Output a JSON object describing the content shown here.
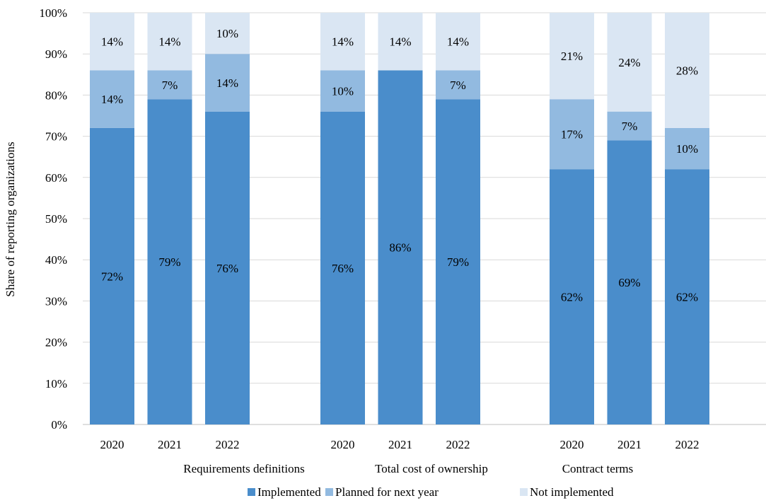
{
  "chart_data": {
    "type": "bar",
    "stacked": true,
    "ylabel": "Share of reporting organizations",
    "ylim": [
      0,
      100
    ],
    "y_ticks": [
      "0%",
      "10%",
      "20%",
      "30%",
      "40%",
      "50%",
      "60%",
      "70%",
      "80%",
      "90%",
      "100%"
    ],
    "y_tick_values": [
      0,
      10,
      20,
      30,
      40,
      50,
      60,
      70,
      80,
      90,
      100
    ],
    "grid": "horizontal",
    "legend_position": "bottom",
    "groups": [
      {
        "name": "Requirements definitions",
        "categories": [
          "2020",
          "2021",
          "2022"
        ],
        "series": [
          {
            "name": "Implemented",
            "values": [
              72,
              79,
              76
            ],
            "labels": [
              "72%",
              "79%",
              "76%"
            ]
          },
          {
            "name": "Planned for next year",
            "values": [
              14,
              7,
              14
            ],
            "labels": [
              "14%",
              "7%",
              "14%"
            ]
          },
          {
            "name": "Not implemented",
            "values": [
              14,
              14,
              10
            ],
            "labels": [
              "14%",
              "14%",
              "10%"
            ]
          }
        ]
      },
      {
        "name": "Total cost of ownership",
        "categories": [
          "2020",
          "2021",
          "2022"
        ],
        "series": [
          {
            "name": "Implemented",
            "values": [
              76,
              86,
              79
            ],
            "labels": [
              "76%",
              "86%",
              "79%"
            ]
          },
          {
            "name": "Planned for next year",
            "values": [
              10,
              0,
              7
            ],
            "labels": [
              "10%",
              "",
              "7%"
            ]
          },
          {
            "name": "Not implemented",
            "values": [
              14,
              14,
              14
            ],
            "labels": [
              "14%",
              "14%",
              "14%"
            ]
          }
        ]
      },
      {
        "name": "Contract terms",
        "categories": [
          "2020",
          "2021",
          "2022"
        ],
        "series": [
          {
            "name": "Implemented",
            "values": [
              62,
              69,
              62
            ],
            "labels": [
              "62%",
              "69%",
              "62%"
            ]
          },
          {
            "name": "Planned for next year",
            "values": [
              17,
              7,
              10
            ],
            "labels": [
              "17%",
              "7%",
              "10%"
            ]
          },
          {
            "name": "Not implemented",
            "values": [
              21,
              24,
              28
            ],
            "labels": [
              "21%",
              "24%",
              "28%"
            ]
          }
        ]
      }
    ],
    "legend": [
      "Implemented",
      "Planned for next year",
      "Not implemented"
    ],
    "colors": {
      "Implemented": "#4a8dcb",
      "Planned for next year": "#92bae0",
      "Not implemented": "#dae6f3",
      "grid": "#d9d9d9",
      "axis": "#bfbfbf"
    }
  }
}
